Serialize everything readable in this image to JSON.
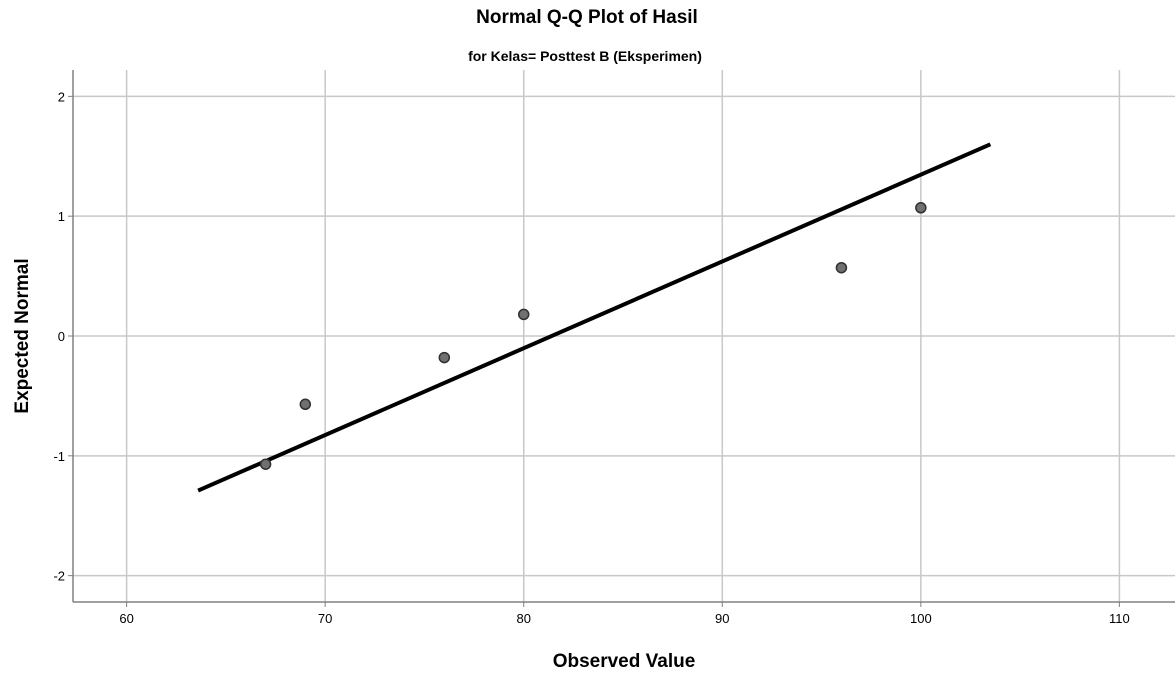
{
  "chart_data": {
    "type": "scatter",
    "title": "Normal Q-Q Plot of Hasil",
    "subtitle": "for Kelas= Posttest B (Eksperimen)",
    "xlabel": "Observed Value",
    "ylabel": "Expected Normal",
    "xlim": [
      57.3,
      112.8
    ],
    "ylim": [
      -2.22,
      2.22
    ],
    "xticks": [
      60,
      70,
      80,
      90,
      100,
      110
    ],
    "yticks": [
      2,
      1,
      0,
      -1,
      -2
    ],
    "xtick_labels": [
      "60",
      "70",
      "80",
      "90",
      "100",
      "110"
    ],
    "ytick_labels": [
      "2",
      "1",
      "0",
      "-1",
      "-2"
    ],
    "grid": true,
    "points": [
      {
        "x": 67,
        "y": -1.07
      },
      {
        "x": 69,
        "y": -0.57
      },
      {
        "x": 76,
        "y": -0.18
      },
      {
        "x": 80,
        "y": 0.18
      },
      {
        "x": 96,
        "y": 0.57
      },
      {
        "x": 100,
        "y": 1.07
      }
    ],
    "reference_line": {
      "x1": 63.6,
      "y1": -1.29,
      "x2": 103.5,
      "y2": 1.6
    },
    "colors": {
      "point_fill": "#707070",
      "point_stroke": "#303030",
      "line": "#000000",
      "grid": "#c8c8c8",
      "axis": "#808080"
    }
  }
}
